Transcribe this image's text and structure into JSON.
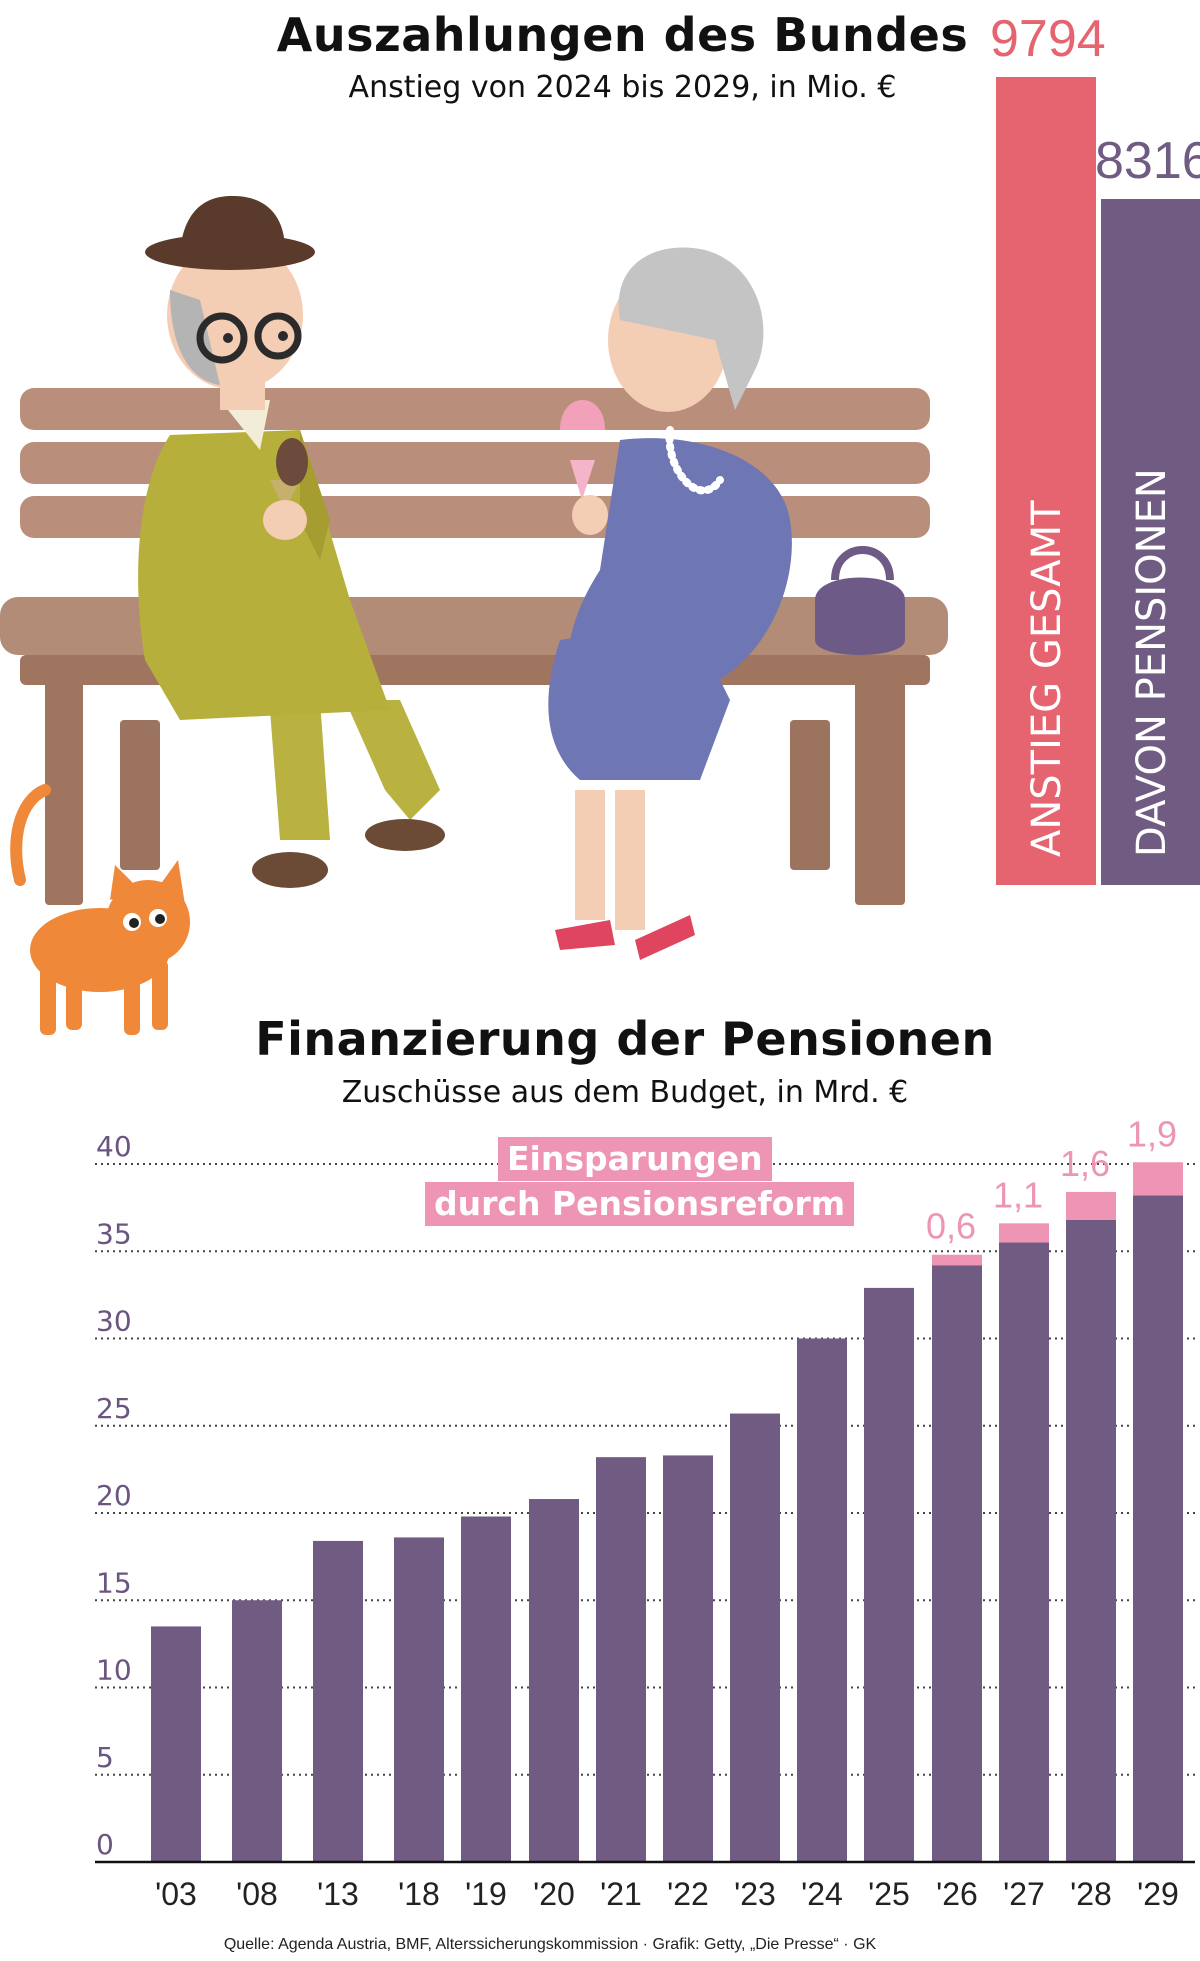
{
  "top_chart": {
    "title": "Auszahlungen des Bundes",
    "subtitle": "Anstieg von 2024 bis 2029, in Mio. €",
    "bars": [
      {
        "label": "ANSTIEG GESAMT",
        "value": 9794,
        "value_text": "9794",
        "color": "#e5646f"
      },
      {
        "label": "DAVON PENSIONEN",
        "value": 8316,
        "value_text": "8316",
        "color": "#705b82"
      }
    ]
  },
  "illustration": {
    "icons": [
      "man-with-hat-icon",
      "woman-with-ice-cream-icon",
      "park-bench-icon",
      "handbag-icon",
      "cat-icon"
    ]
  },
  "chart_data": {
    "type": "bar",
    "title": "Finanzierung der Pensionen",
    "subtitle": "Zuschüsse aus dem Budget, in Mrd. €",
    "xlabel": "",
    "ylabel": "",
    "ylim": [
      0,
      40
    ],
    "yticks": [
      0,
      5,
      10,
      15,
      20,
      25,
      30,
      35,
      40
    ],
    "categories": [
      "'03",
      "'08",
      "'13",
      "'18",
      "'19",
      "'20",
      "'21",
      "'22",
      "'23",
      "'24",
      "'25",
      "'26",
      "'27",
      "'28",
      "'29"
    ],
    "series": [
      {
        "values": [
          13.5,
          15.0,
          18.4,
          18.6,
          19.8,
          20.8,
          23.2,
          23.3,
          25.7,
          30.0,
          32.9,
          34.2,
          35.5,
          36.8,
          38.2
        ],
        "color": "#705b82"
      },
      {
        "name": "Einsparungen durch Pensionsreform",
        "values": [
          0,
          0,
          0,
          0,
          0,
          0,
          0,
          0,
          0,
          0,
          0,
          0.6,
          1.1,
          1.6,
          1.9
        ],
        "color": "#ee94b4"
      }
    ],
    "savings_labels": [
      "",
      "",
      "",
      "",
      "",
      "",
      "",
      "",
      "",
      "",
      "",
      "0,6",
      "1,1",
      "1,6",
      "1,9"
    ],
    "legend": {
      "line1": "Einsparungen",
      "line2": "durch Pensionsreform",
      "placement": "top-center"
    },
    "grid": true
  },
  "source": "Quelle: Agenda Austria, BMF, Alterssicherungskommission · Grafik: Getty, „Die Presse“ · GK"
}
